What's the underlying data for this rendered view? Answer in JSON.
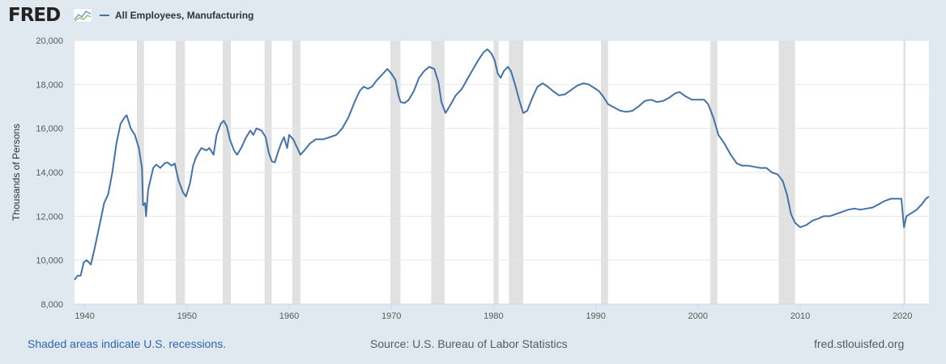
{
  "header": {
    "logo_text": "FRED",
    "legend_label": "All Employees, Manufacturing",
    "series_color": "#4572a7"
  },
  "footer": {
    "recessions_note": "Shaded areas indicate U.S. recessions.",
    "source": "Source: U.S. Bureau of Labor Statistics",
    "site": "fred.stlouisfed.org"
  },
  "chart_data": {
    "type": "line",
    "ylabel": "Thousands of Persons",
    "xlabel": "",
    "ylim": [
      8000,
      20000
    ],
    "xlim": [
      1939.0,
      2022.6
    ],
    "x_ticks": [
      1940,
      1950,
      1960,
      1970,
      1980,
      1990,
      2000,
      2010,
      2020
    ],
    "y_ticks": [
      8000,
      10000,
      12000,
      14000,
      16000,
      18000,
      20000
    ],
    "y_tick_labels": [
      "8,000",
      "10,000",
      "12,000",
      "14,000",
      "16,000",
      "18,000",
      "20,000"
    ],
    "grid": "horizontal",
    "recessions": [
      [
        1945.1,
        1945.8
      ],
      [
        1948.9,
        1949.8
      ],
      [
        1953.5,
        1954.3
      ],
      [
        1957.6,
        1958.3
      ],
      [
        1960.3,
        1961.1
      ],
      [
        1969.9,
        1970.9
      ],
      [
        1973.9,
        1975.2
      ],
      [
        1980.0,
        1980.5
      ],
      [
        1981.5,
        1982.9
      ],
      [
        1990.5,
        1991.2
      ],
      [
        2001.2,
        2001.9
      ],
      [
        2007.9,
        2009.5
      ],
      [
        2020.1,
        2020.3
      ]
    ],
    "series": [
      {
        "name": "All Employees, Manufacturing",
        "points": [
          [
            1939.0,
            9100
          ],
          [
            1939.3,
            9300
          ],
          [
            1939.6,
            9300
          ],
          [
            1939.9,
            9900
          ],
          [
            1940.2,
            10000
          ],
          [
            1940.6,
            9800
          ],
          [
            1941.0,
            10600
          ],
          [
            1941.5,
            11700
          ],
          [
            1941.9,
            12600
          ],
          [
            1942.3,
            13000
          ],
          [
            1942.7,
            14000
          ],
          [
            1943.1,
            15300
          ],
          [
            1943.5,
            16200
          ],
          [
            1943.9,
            16500
          ],
          [
            1944.1,
            16600
          ],
          [
            1944.5,
            16000
          ],
          [
            1944.9,
            15700
          ],
          [
            1945.3,
            15100
          ],
          [
            1945.6,
            14200
          ],
          [
            1945.7,
            12500
          ],
          [
            1945.9,
            12600
          ],
          [
            1946.0,
            12000
          ],
          [
            1946.2,
            13200
          ],
          [
            1946.7,
            14200
          ],
          [
            1947.0,
            14350
          ],
          [
            1947.4,
            14200
          ],
          [
            1947.8,
            14400
          ],
          [
            1948.1,
            14450
          ],
          [
            1948.5,
            14300
          ],
          [
            1948.8,
            14400
          ],
          [
            1949.2,
            13600
          ],
          [
            1949.6,
            13100
          ],
          [
            1949.9,
            12900
          ],
          [
            1950.3,
            13500
          ],
          [
            1950.6,
            14300
          ],
          [
            1950.9,
            14700
          ],
          [
            1951.4,
            15100
          ],
          [
            1951.9,
            15000
          ],
          [
            1952.2,
            15100
          ],
          [
            1952.6,
            14800
          ],
          [
            1952.9,
            15700
          ],
          [
            1953.3,
            16200
          ],
          [
            1953.6,
            16350
          ],
          [
            1953.9,
            16100
          ],
          [
            1954.2,
            15500
          ],
          [
            1954.6,
            15000
          ],
          [
            1954.9,
            14800
          ],
          [
            1955.3,
            15100
          ],
          [
            1955.8,
            15600
          ],
          [
            1956.2,
            15900
          ],
          [
            1956.5,
            15700
          ],
          [
            1956.8,
            16000
          ],
          [
            1957.3,
            15900
          ],
          [
            1957.7,
            15600
          ],
          [
            1958.0,
            14900
          ],
          [
            1958.3,
            14500
          ],
          [
            1958.6,
            14450
          ],
          [
            1958.9,
            14900
          ],
          [
            1959.2,
            15300
          ],
          [
            1959.5,
            15600
          ],
          [
            1959.8,
            15100
          ],
          [
            1960.0,
            15700
          ],
          [
            1960.4,
            15500
          ],
          [
            1960.8,
            15100
          ],
          [
            1961.1,
            14800
          ],
          [
            1961.5,
            15000
          ],
          [
            1962.0,
            15300
          ],
          [
            1962.6,
            15500
          ],
          [
            1963.3,
            15500
          ],
          [
            1964.0,
            15600
          ],
          [
            1964.6,
            15700
          ],
          [
            1965.2,
            16000
          ],
          [
            1965.8,
            16500
          ],
          [
            1966.4,
            17200
          ],
          [
            1966.9,
            17700
          ],
          [
            1967.3,
            17900
          ],
          [
            1967.7,
            17800
          ],
          [
            1968.1,
            17900
          ],
          [
            1968.6,
            18200
          ],
          [
            1969.0,
            18400
          ],
          [
            1969.6,
            18700
          ],
          [
            1970.0,
            18500
          ],
          [
            1970.4,
            18200
          ],
          [
            1970.7,
            17500
          ],
          [
            1970.9,
            17200
          ],
          [
            1971.3,
            17150
          ],
          [
            1971.7,
            17300
          ],
          [
            1972.2,
            17700
          ],
          [
            1972.7,
            18300
          ],
          [
            1973.2,
            18600
          ],
          [
            1973.7,
            18800
          ],
          [
            1974.2,
            18700
          ],
          [
            1974.6,
            18100
          ],
          [
            1974.9,
            17200
          ],
          [
            1975.3,
            16700
          ],
          [
            1975.7,
            17000
          ],
          [
            1976.3,
            17500
          ],
          [
            1976.9,
            17800
          ],
          [
            1977.5,
            18300
          ],
          [
            1978.0,
            18700
          ],
          [
            1978.5,
            19100
          ],
          [
            1979.0,
            19450
          ],
          [
            1979.4,
            19600
          ],
          [
            1979.8,
            19400
          ],
          [
            1980.1,
            19100
          ],
          [
            1980.4,
            18500
          ],
          [
            1980.7,
            18300
          ],
          [
            1981.0,
            18600
          ],
          [
            1981.4,
            18800
          ],
          [
            1981.7,
            18600
          ],
          [
            1982.1,
            18000
          ],
          [
            1982.5,
            17300
          ],
          [
            1982.9,
            16700
          ],
          [
            1983.3,
            16800
          ],
          [
            1983.8,
            17400
          ],
          [
            1984.3,
            17900
          ],
          [
            1984.8,
            18050
          ],
          [
            1985.3,
            17900
          ],
          [
            1985.8,
            17700
          ],
          [
            1986.4,
            17500
          ],
          [
            1987.0,
            17550
          ],
          [
            1987.6,
            17750
          ],
          [
            1988.2,
            17950
          ],
          [
            1988.8,
            18050
          ],
          [
            1989.3,
            18000
          ],
          [
            1989.8,
            17850
          ],
          [
            1990.3,
            17700
          ],
          [
            1990.8,
            17400
          ],
          [
            1991.2,
            17100
          ],
          [
            1991.8,
            16950
          ],
          [
            1992.4,
            16800
          ],
          [
            1993.0,
            16750
          ],
          [
            1993.6,
            16800
          ],
          [
            1994.2,
            17000
          ],
          [
            1994.8,
            17250
          ],
          [
            1995.4,
            17300
          ],
          [
            1996.0,
            17200
          ],
          [
            1996.6,
            17250
          ],
          [
            1997.2,
            17400
          ],
          [
            1997.8,
            17600
          ],
          [
            1998.2,
            17650
          ],
          [
            1998.8,
            17450
          ],
          [
            1999.4,
            17300
          ],
          [
            2000.0,
            17300
          ],
          [
            2000.6,
            17300
          ],
          [
            2001.0,
            17100
          ],
          [
            2001.5,
            16500
          ],
          [
            2002.0,
            15700
          ],
          [
            2002.6,
            15300
          ],
          [
            2003.2,
            14800
          ],
          [
            2003.8,
            14400
          ],
          [
            2004.3,
            14300
          ],
          [
            2004.9,
            14300
          ],
          [
            2005.5,
            14250
          ],
          [
            2006.1,
            14200
          ],
          [
            2006.7,
            14200
          ],
          [
            2007.2,
            14000
          ],
          [
            2007.8,
            13900
          ],
          [
            2008.3,
            13600
          ],
          [
            2008.7,
            13000
          ],
          [
            2009.1,
            12100
          ],
          [
            2009.5,
            11700
          ],
          [
            2010.0,
            11500
          ],
          [
            2010.6,
            11600
          ],
          [
            2011.2,
            11800
          ],
          [
            2011.8,
            11900
          ],
          [
            2012.3,
            12000
          ],
          [
            2012.9,
            12000
          ],
          [
            2013.5,
            12100
          ],
          [
            2014.1,
            12200
          ],
          [
            2014.7,
            12300
          ],
          [
            2015.3,
            12350
          ],
          [
            2015.9,
            12300
          ],
          [
            2016.5,
            12350
          ],
          [
            2017.1,
            12400
          ],
          [
            2017.7,
            12550
          ],
          [
            2018.3,
            12700
          ],
          [
            2018.9,
            12800
          ],
          [
            2019.5,
            12800
          ],
          [
            2019.9,
            12800
          ],
          [
            2020.15,
            11500
          ],
          [
            2020.4,
            12000
          ],
          [
            2020.9,
            12150
          ],
          [
            2021.4,
            12300
          ],
          [
            2021.9,
            12550
          ],
          [
            2022.3,
            12800
          ],
          [
            2022.6,
            12900
          ]
        ]
      }
    ]
  }
}
